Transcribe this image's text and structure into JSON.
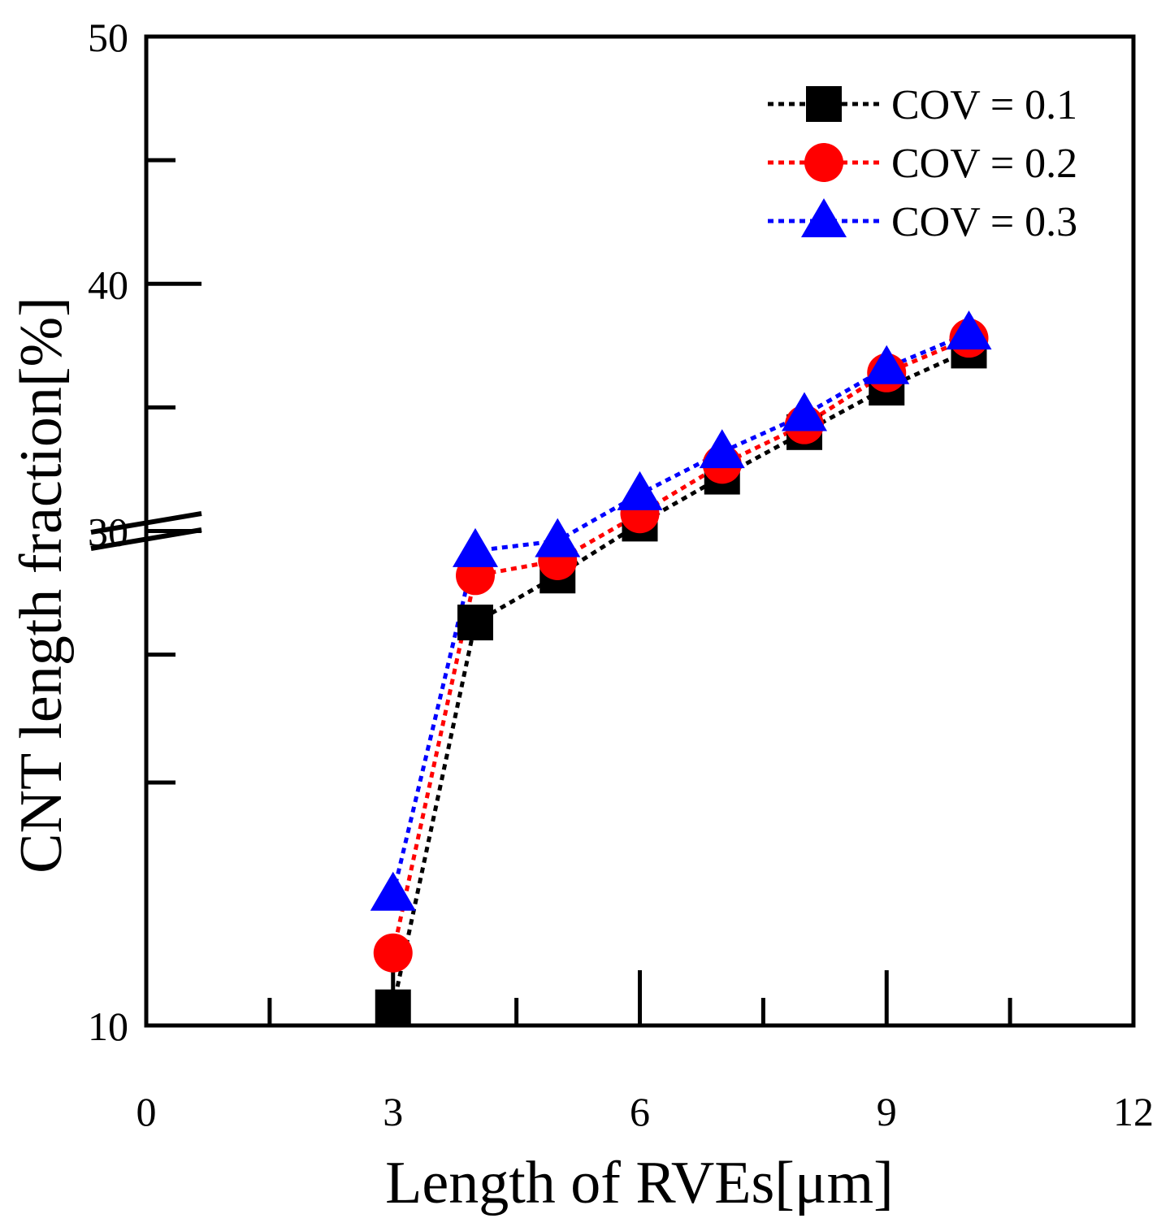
{
  "chart_data": {
    "type": "line",
    "title": "",
    "xlabel": "Length of  RVEs[μm]",
    "ylabel": "CNT length fraction[%]",
    "xlim": [
      0,
      12
    ],
    "x_ticks": [
      0,
      3,
      6,
      9,
      12
    ],
    "x_tick_labels": [
      "0",
      "3",
      "6",
      "9",
      "12"
    ],
    "ylim": [
      10,
      50
    ],
    "y_tick_labels": [
      "10",
      "30",
      "40",
      "50"
    ],
    "y_axis_break": "broken axis between 10 and ~26",
    "grid": false,
    "legend_position": "top-right",
    "x": [
      3,
      4,
      5,
      6,
      7,
      8,
      9,
      10
    ],
    "series": [
      {
        "name": "COV = 0.1",
        "color": "#000000",
        "marker": "square",
        "values": [
          10.9,
          26.3,
          28.2,
          30.3,
          32.2,
          34.0,
          35.8,
          37.3
        ]
      },
      {
        "name": "COV = 0.2",
        "color": "#ff0000",
        "marker": "circle",
        "values": [
          13.6,
          28.2,
          28.8,
          30.7,
          32.7,
          34.3,
          36.4,
          37.8
        ]
      },
      {
        "name": "COV = 0.3",
        "color": "#0000ff",
        "marker": "triangle",
        "values": [
          16.5,
          29.2,
          29.6,
          31.5,
          33.2,
          34.7,
          36.6,
          38.0
        ]
      }
    ]
  }
}
